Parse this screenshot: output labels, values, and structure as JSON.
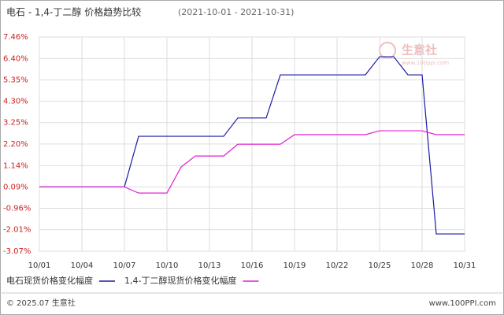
{
  "chart_data": {
    "type": "line",
    "title": "电石 - 1,4-丁二醇 价格趋势比较",
    "subtitle": "(2021-10-01 - 2021-10-31)",
    "categories": [
      "10/01",
      null,
      null,
      "10/04",
      null,
      null,
      "10/07",
      null,
      null,
      "10/10",
      null,
      null,
      "10/13",
      null,
      null,
      "10/16",
      null,
      null,
      "10/19",
      null,
      null,
      "10/22",
      null,
      null,
      "10/25",
      null,
      null,
      "10/28",
      null,
      null,
      "10/31"
    ],
    "series": [
      {
        "name": "电石现货价格变化幅度",
        "color": "#1a1aa6",
        "values": [
          0.09,
          0.09,
          0.09,
          0.09,
          0.09,
          0.09,
          0.09,
          2.58,
          2.58,
          2.58,
          2.58,
          2.58,
          2.58,
          2.58,
          3.48,
          3.48,
          3.48,
          5.6,
          5.6,
          5.6,
          5.6,
          5.6,
          5.6,
          5.6,
          6.49,
          6.49,
          5.6,
          5.6,
          -2.22,
          -2.22,
          -2.22
        ]
      },
      {
        "name": "1,4-丁二醇现货价格变化幅度",
        "color": "#e020d0",
        "values": [
          0.09,
          0.09,
          0.09,
          0.09,
          0.09,
          0.09,
          0.09,
          -0.21,
          -0.21,
          -0.21,
          1.07,
          1.61,
          1.61,
          1.61,
          2.19,
          2.19,
          2.19,
          2.19,
          2.66,
          2.66,
          2.66,
          2.66,
          2.66,
          2.66,
          2.85,
          2.85,
          2.85,
          2.85,
          2.66,
          2.66,
          2.66
        ]
      }
    ],
    "ylim": [
      -3.07,
      7.46
    ],
    "yticks": [
      {
        "value": 7.46,
        "label": "7.46%"
      },
      {
        "value": 6.4,
        "label": "6.40%"
      },
      {
        "value": 5.35,
        "label": "5.35%"
      },
      {
        "value": 4.3,
        "label": "4.30%"
      },
      {
        "value": 3.25,
        "label": "3.25%"
      },
      {
        "value": 2.2,
        "label": "2.20%"
      },
      {
        "value": 1.14,
        "label": "1.14%"
      },
      {
        "value": 0.09,
        "label": "0.09%"
      },
      {
        "value": -0.96,
        "label": "-0.96%"
      },
      {
        "value": -2.01,
        "label": "-2.01%"
      },
      {
        "value": -3.07,
        "label": "-3.07%"
      }
    ],
    "grid": true,
    "watermark": "生意社",
    "watermark_url": "www.100ppi.com",
    "copyright": "© 2025.07 生意社",
    "site": "www.100PPI.com"
  }
}
